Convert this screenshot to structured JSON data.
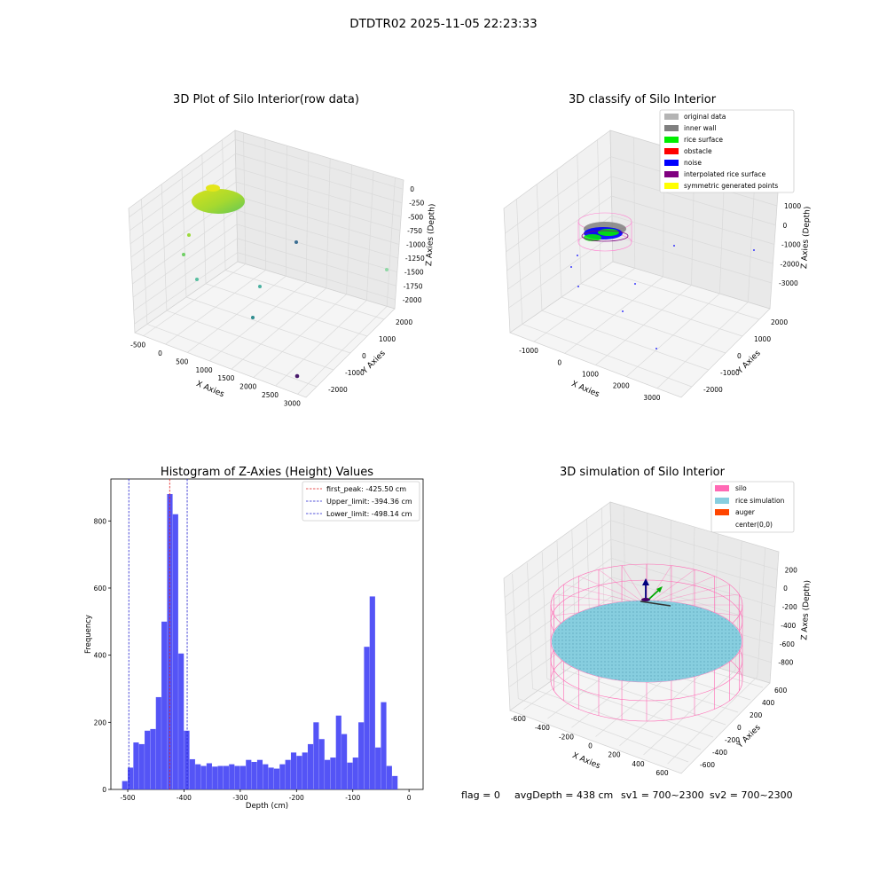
{
  "figure_title": "DTDTR02 2025-11-05 22:23:33",
  "footer": {
    "flag": "flag = 0",
    "avg_depth": "avgDepth = 438 cm",
    "sv1": "sv1 = 700~2300",
    "sv2": "sv2 = 700~2300"
  },
  "colors": {
    "hist_bar": "#4b4bf5",
    "first_peak": "#e02020",
    "limit": "#2020d0",
    "original": "#b4b4b4",
    "inner_wall": "#808080",
    "rice_surface": "#00ee00",
    "obstacle": "#ff0000",
    "noise": "#0000ff",
    "interpolated": "#800080",
    "symmetric": "#ffff00",
    "silo": "#ff69b4",
    "rice_sim": "#87cedf",
    "auger": "#ff4500"
  },
  "chart_data": [
    {
      "type": "scatter",
      "subtype": "3d",
      "title": "3D Plot of Silo Interior(row data)",
      "xlabel": "X Axies",
      "ylabel": "Y Axies",
      "zlabel": "Z Axies (Depth)",
      "x_ticks": [
        "-500",
        "0",
        "500",
        "1000",
        "1500",
        "2000",
        "2500",
        "3000"
      ],
      "y_ticks": [
        "-2000",
        "-1000",
        "0",
        "1000",
        "2000"
      ],
      "z_ticks": [
        "0",
        "-250",
        "-500",
        "-750",
        "-1000",
        "-1250",
        "-1500",
        "-1750",
        "-2000"
      ],
      "colormap": "viridis",
      "points": [
        {
          "x": 200,
          "y": 500,
          "z": -450
        },
        {
          "x": -300,
          "y": -300,
          "z": -1400
        },
        {
          "x": -400,
          "y": 0,
          "z": -1500
        },
        {
          "x": 600,
          "y": -500,
          "z": -1600
        },
        {
          "x": 1000,
          "y": -300,
          "z": -1850
        },
        {
          "x": 1800,
          "y": 1200,
          "z": -900
        },
        {
          "x": 2800,
          "y": 2100,
          "z": -1100
        },
        {
          "x": 3000,
          "y": -1900,
          "z": -1950
        }
      ]
    },
    {
      "type": "scatter",
      "subtype": "3d",
      "title": "3D classify of Silo Interior",
      "xlabel": "X Axies",
      "ylabel": "Y Axies",
      "zlabel": "Z Axies (Depth)",
      "x_ticks": [
        "-1000",
        "0",
        "1000",
        "2000",
        "3000"
      ],
      "y_ticks": [
        "-2000",
        "-1000",
        "0",
        "1000",
        "2000"
      ],
      "z_ticks": [
        "1000",
        "0",
        "-1000",
        "-2000",
        "-3000"
      ],
      "legend": [
        "original data",
        "inner wall",
        "rice surface",
        "obstacle",
        "noise",
        "interpolated rice surface",
        "symmetric generated points"
      ],
      "legend_loc": "upper right"
    },
    {
      "type": "bar",
      "subtype": "histogram",
      "title": "Histogram of Z-Axies (Height) Values",
      "xlabel": "Depth (cm)",
      "ylabel": "Frequency",
      "xlim": [
        -530,
        25
      ],
      "ylim": [
        0,
        925
      ],
      "x_ticks": [
        -500,
        -400,
        -300,
        -200,
        -100,
        0
      ],
      "y_ticks": [
        0,
        200,
        400,
        600,
        800
      ],
      "bin_start": -510,
      "bin_width": 10,
      "values": [
        25,
        65,
        140,
        135,
        175,
        180,
        275,
        500,
        880,
        820,
        405,
        175,
        90,
        75,
        70,
        78,
        68,
        70,
        70,
        75,
        70,
        70,
        88,
        82,
        88,
        75,
        65,
        62,
        75,
        88,
        110,
        100,
        110,
        135,
        200,
        150,
        88,
        95,
        220,
        165,
        80,
        95,
        200,
        425,
        575,
        125,
        260,
        70,
        40
      ],
      "lines": [
        {
          "label": "first_peak: -425.50 cm",
          "x": -425.5,
          "color": "#e02020"
        },
        {
          "label": "Upper_limit: -394.36 cm",
          "x": -394.36,
          "color": "#2020d0"
        },
        {
          "label": "Lower_limit: -498.14 cm",
          "x": -498.14,
          "color": "#2020d0"
        }
      ],
      "legend_loc": "upper right"
    },
    {
      "type": "scatter",
      "subtype": "3d-surface",
      "title": "3D simulation of Silo Interior",
      "xlabel": "X Axies",
      "ylabel": "Y Axies",
      "zlabel": "Z Axes (Depth)",
      "x_ticks": [
        "-600",
        "-400",
        "-200",
        "0",
        "200",
        "400",
        "600"
      ],
      "y_ticks": [
        "-600",
        "-400",
        "-200",
        "0",
        "200",
        "400",
        "600"
      ],
      "z_ticks": [
        "200",
        "0",
        "-200",
        "-400",
        "-600",
        "-800"
      ],
      "legend": [
        "silo",
        "rice simulation",
        "auger",
        "center(0,0)"
      ],
      "legend_loc": "upper right"
    }
  ]
}
